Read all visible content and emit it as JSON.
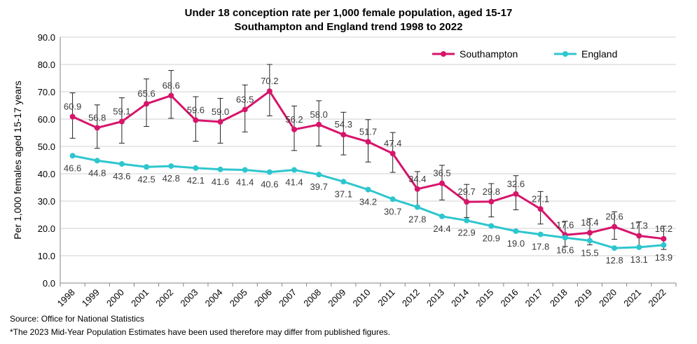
{
  "chart_data": {
    "type": "line",
    "title": "Under 18 conception rate per 1,000 female population, aged 15-17",
    "subtitle": "Southampton and England trend 1998 to 2022",
    "xlabel": "",
    "ylabel": "Per 1,000 females aged 15-17 years",
    "ylim": [
      0,
      90
    ],
    "yticks": [
      "0.0",
      "10.0",
      "20.0",
      "30.0",
      "40.0",
      "50.0",
      "60.0",
      "70.0",
      "80.0",
      "90.0"
    ],
    "grid": true,
    "legend_position": "top-right",
    "categories": [
      "1998",
      "1999",
      "2000",
      "2001",
      "2002",
      "2003",
      "2004",
      "2005",
      "2006",
      "2007",
      "2008",
      "2009",
      "2010",
      "2011",
      "2012",
      "2013",
      "2014",
      "2015",
      "2016",
      "2017",
      "2018",
      "2019",
      "2020",
      "2021",
      "2022"
    ],
    "series": [
      {
        "name": "Southampton",
        "color": "#d6156b",
        "values": [
          60.9,
          56.8,
          59.1,
          65.6,
          68.6,
          59.6,
          59.0,
          63.5,
          70.2,
          56.2,
          58.0,
          54.3,
          51.7,
          47.4,
          34.4,
          36.5,
          29.7,
          29.8,
          32.6,
          27.1,
          17.6,
          18.4,
          20.6,
          17.3,
          16.2
        ],
        "labels": [
          "60.9",
          "56.8",
          "59.1",
          "65.6",
          "68.6",
          "59.6",
          "59.0",
          "63.5",
          "70.2",
          "56.2",
          "58.0",
          "54.3",
          "51.7",
          "47.4",
          "34.4",
          "36.5",
          "29.7",
          "29.8",
          "32.6",
          "27.1",
          "17.6",
          "18.4",
          "20.6",
          "17.3",
          "16.2"
        ],
        "error_low": [
          53.0,
          49.3,
          51.2,
          57.3,
          60.3,
          51.9,
          51.2,
          55.3,
          61.2,
          48.5,
          50.2,
          46.9,
          44.3,
          40.5,
          28.2,
          30.4,
          24.0,
          24.2,
          26.8,
          21.6,
          13.4,
          14.0,
          16.0,
          13.1,
          12.3
        ],
        "error_high": [
          69.6,
          65.2,
          67.8,
          74.7,
          77.8,
          68.2,
          67.6,
          72.5,
          80.0,
          64.8,
          66.7,
          62.5,
          59.8,
          55.1,
          40.8,
          43.1,
          36.1,
          36.4,
          39.3,
          33.5,
          22.6,
          23.6,
          26.1,
          22.4,
          20.8
        ]
      },
      {
        "name": "England",
        "color": "#2ec6ce",
        "values": [
          46.6,
          44.8,
          43.6,
          42.5,
          42.8,
          42.1,
          41.6,
          41.4,
          40.6,
          41.4,
          39.7,
          37.1,
          34.2,
          30.7,
          27.8,
          24.4,
          22.9,
          20.9,
          19.0,
          17.8,
          16.6,
          15.5,
          12.8,
          13.1,
          13.9
        ],
        "labels": [
          "46.6",
          "44.8",
          "43.6",
          "42.5",
          "42.8",
          "42.1",
          "41.6",
          "41.4",
          "40.6",
          "41.4",
          "39.7",
          "37.1",
          "34.2",
          "30.7",
          "27.8",
          "24.4",
          "22.9",
          "20.9",
          "19.0",
          "17.8",
          "16.6",
          "15.5",
          "12.8",
          "13.1",
          "13.9"
        ]
      }
    ]
  },
  "source": "Source:  Office for National Statistics",
  "footnote": "*The 2023 Mid-Year  Population Estimates have been used therefore may differ from published figures."
}
